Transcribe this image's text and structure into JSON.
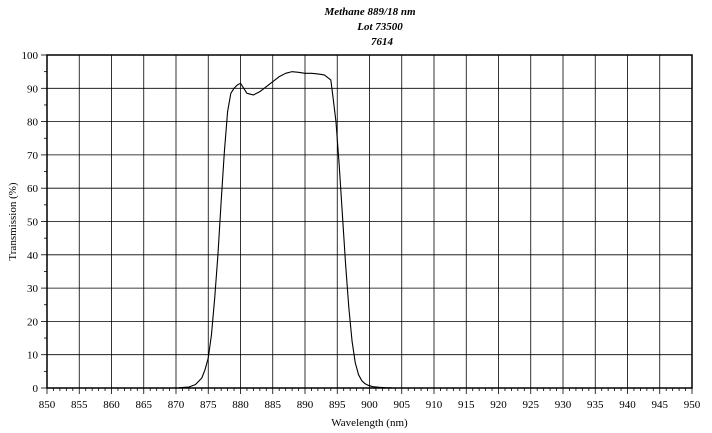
{
  "chart_data": {
    "type": "line",
    "title_lines": [
      "Methane 889/18 nm",
      "Lot 73500",
      "7614"
    ],
    "xlabel": "Wavelength (nm)",
    "ylabel": "Transmission (%)",
    "xlim": [
      850,
      950
    ],
    "ylim": [
      0,
      100
    ],
    "xticks": [
      "850",
      "855",
      "860",
      "865",
      "870",
      "875",
      "880",
      "885",
      "890",
      "895",
      "900",
      "905",
      "910",
      "915",
      "920",
      "925",
      "930",
      "935",
      "940",
      "945",
      "950"
    ],
    "yticks": [
      "0",
      "10",
      "20",
      "30",
      "40",
      "50",
      "60",
      "70",
      "80",
      "90",
      "100"
    ],
    "grid": true,
    "series": [
      {
        "color": "#000000",
        "x": [
          870.5,
          872,
          873,
          874,
          874.5,
          875,
          875.5,
          876,
          876.5,
          877,
          877.5,
          878,
          878.5,
          879,
          879.5,
          880,
          880.5,
          881,
          882,
          883,
          884,
          885,
          886,
          887,
          888,
          889,
          890,
          891,
          892,
          893,
          894,
          894.3,
          894.8,
          895.3,
          895.8,
          896.3,
          896.8,
          897.3,
          897.8,
          898.3,
          898.8,
          899.3,
          899.8,
          900.5,
          901.5,
          902.5,
          903.5
        ],
        "y": [
          0.1,
          0.3,
          1.0,
          3.0,
          5.5,
          9.0,
          16,
          27,
          40,
          56,
          71,
          83,
          88.5,
          90,
          91,
          91.5,
          90,
          88.5,
          88,
          89,
          90.5,
          92,
          93.5,
          94.5,
          95,
          94.8,
          94.5,
          94.5,
          94.3,
          94,
          92.5,
          88,
          80,
          67,
          52,
          37,
          24,
          14,
          7.5,
          4.0,
          2.2,
          1.3,
          0.8,
          0.4,
          0.2,
          0.1,
          0.05
        ]
      }
    ]
  }
}
